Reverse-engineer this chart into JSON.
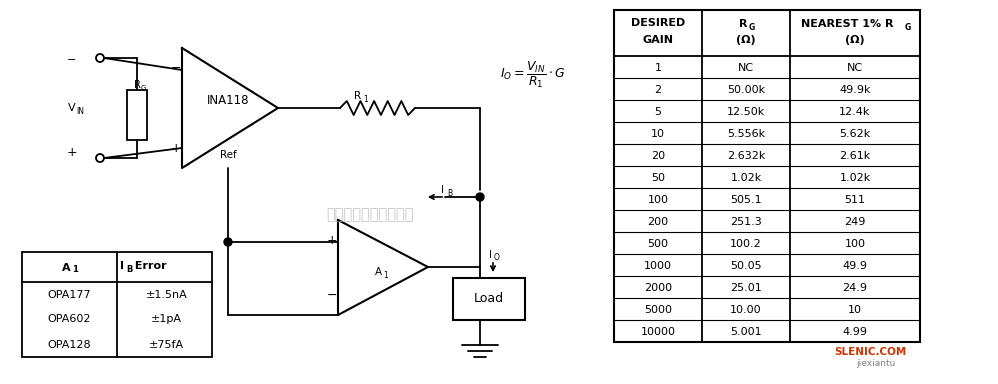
{
  "bg_color": "#ffffff",
  "table_data": [
    [
      "1",
      "NC",
      "NC"
    ],
    [
      "2",
      "50.00k",
      "49.9k"
    ],
    [
      "5",
      "12.50k",
      "12.4k"
    ],
    [
      "10",
      "5.556k",
      "5.62k"
    ],
    [
      "20",
      "2.632k",
      "2.61k"
    ],
    [
      "50",
      "1.02k",
      "1.02k"
    ],
    [
      "100",
      "505.1",
      "511"
    ],
    [
      "200",
      "251.3",
      "249"
    ],
    [
      "500",
      "100.2",
      "100"
    ],
    [
      "1000",
      "50.05",
      "49.9"
    ],
    [
      "2000",
      "25.01",
      "24.9"
    ],
    [
      "5000",
      "10.00",
      "10"
    ],
    [
      "10000",
      "5.001",
      "4.99"
    ]
  ],
  "small_table_data": [
    [
      "OPA177",
      "±1.5nA"
    ],
    [
      "OPA602",
      "±1pA"
    ],
    [
      "OPA128",
      "±75fA"
    ]
  ],
  "watermark": "杭州将睭科技有限公司"
}
